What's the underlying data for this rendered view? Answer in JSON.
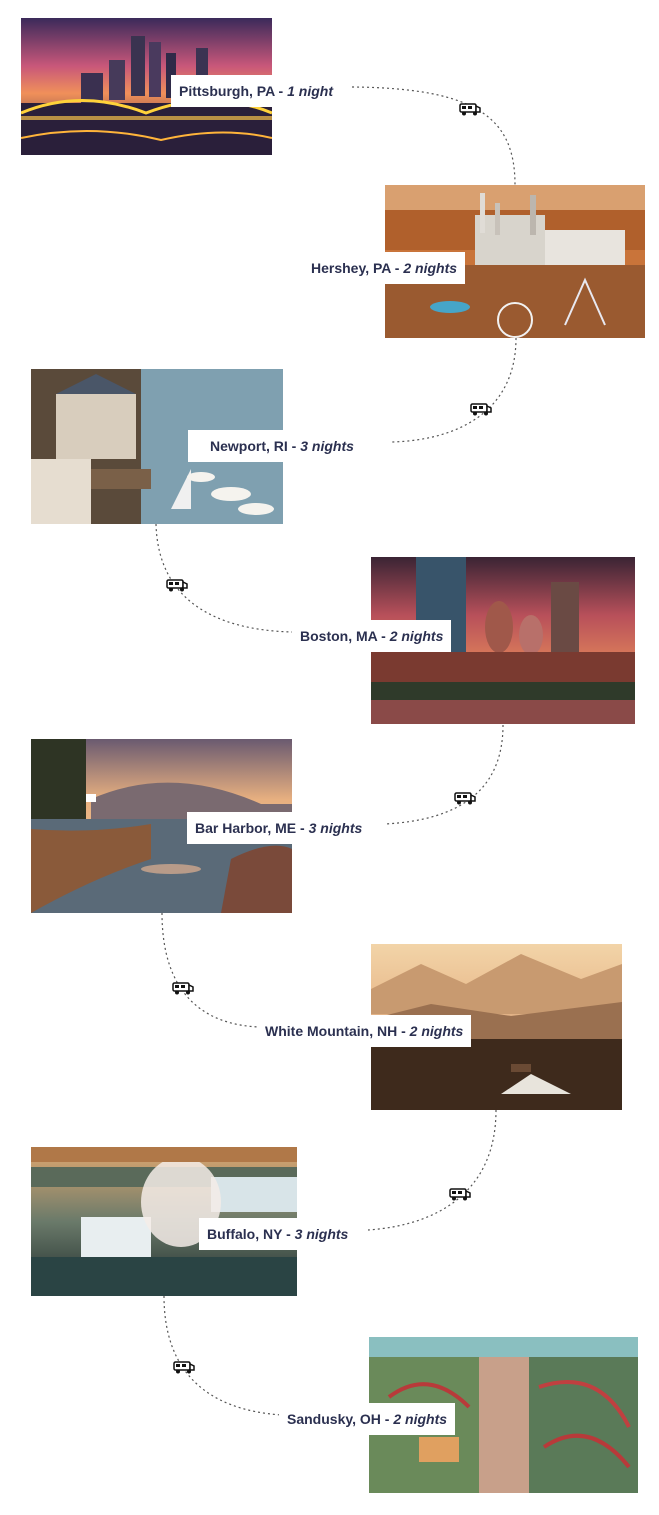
{
  "stops": [
    {
      "city": "Pittsburgh, PA",
      "separator": " - ",
      "nights": "1 night"
    },
    {
      "city": "Hershey, PA",
      "separator": " - ",
      "nights": "2 nights"
    },
    {
      "city": "Newport, RI",
      "separator": " - ",
      "nights": "3 nights"
    },
    {
      "city": "Boston, MA",
      "separator": " - ",
      "nights": "2 nights"
    },
    {
      "city": "Bar Harbor, ME",
      "separator": " - ",
      "nights": "3 nights"
    },
    {
      "city": "White Mountain, NH",
      "separator": " - ",
      "nights": "2 nights"
    },
    {
      "city": "Buffalo, NY",
      "separator": " - ",
      "nights": "3 nights"
    },
    {
      "city": "Sandusky, OH",
      "separator": " - ",
      "nights": "2 nights"
    }
  ],
  "icons": {
    "route_marker": "rv-camper-icon"
  },
  "colors": {
    "label_text": "#2b3050",
    "route_line": "#555555"
  }
}
